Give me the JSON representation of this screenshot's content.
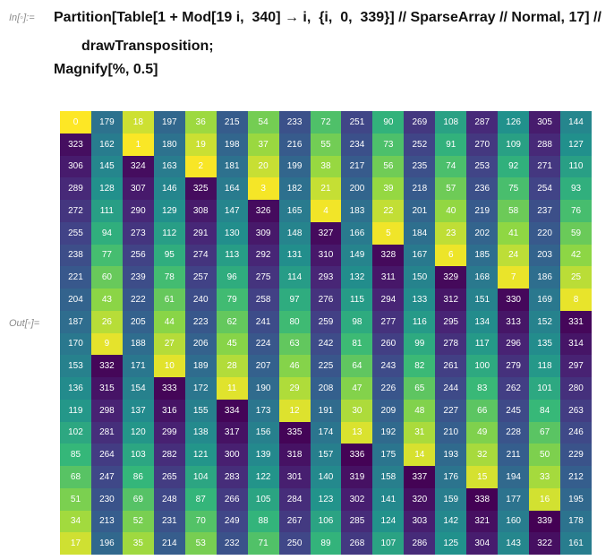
{
  "input_label": "In[◦]:=",
  "output_label": "Out[◦]=",
  "code": {
    "line1": "Partition[Table[1 + Mod[19 i,  340] → i,  {i,  0,  339}] // SparseArray // Normal, 17] //",
    "line2": "drawTransposition;",
    "line3": "Magnify[%, 0.5]"
  },
  "grid": {
    "rows": 20,
    "cols": 17,
    "colormap": "viridis",
    "max_value": 339,
    "values": [
      [
        0,
        179,
        18,
        197,
        36,
        215,
        54,
        233,
        72,
        251,
        90,
        269,
        108,
        287,
        126,
        305,
        144
      ],
      [
        323,
        162,
        1,
        180,
        19,
        198,
        37,
        216,
        55,
        234,
        73,
        252,
        91,
        270,
        109,
        288,
        127
      ],
      [
        306,
        145,
        324,
        163,
        2,
        181,
        20,
        199,
        38,
        217,
        56,
        235,
        74,
        253,
        92,
        271,
        110
      ],
      [
        289,
        128,
        307,
        146,
        325,
        164,
        3,
        182,
        21,
        200,
        39,
        218,
        57,
        236,
        75,
        254,
        93
      ],
      [
        272,
        111,
        290,
        129,
        308,
        147,
        326,
        165,
        4,
        183,
        22,
        201,
        40,
        219,
        58,
        237,
        76
      ],
      [
        255,
        94,
        273,
        112,
        291,
        130,
        309,
        148,
        327,
        166,
        5,
        184,
        23,
        202,
        41,
        220,
        59
      ],
      [
        238,
        77,
        256,
        95,
        274,
        113,
        292,
        131,
        310,
        149,
        328,
        167,
        6,
        185,
        24,
        203,
        42
      ],
      [
        221,
        60,
        239,
        78,
        257,
        96,
        275,
        114,
        293,
        132,
        311,
        150,
        329,
        168,
        7,
        186,
        25
      ],
      [
        204,
        43,
        222,
        61,
        240,
        79,
        258,
        97,
        276,
        115,
        294,
        133,
        312,
        151,
        330,
        169,
        8
      ],
      [
        187,
        26,
        205,
        44,
        223,
        62,
        241,
        80,
        259,
        98,
        277,
        116,
        295,
        134,
        313,
        152,
        331
      ],
      [
        170,
        9,
        188,
        27,
        206,
        45,
        224,
        63,
        242,
        81,
        260,
        99,
        278,
        117,
        296,
        135,
        314
      ],
      [
        153,
        332,
        171,
        10,
        189,
        28,
        207,
        46,
        225,
        64,
        243,
        82,
        261,
        100,
        279,
        118,
        297
      ],
      [
        136,
        315,
        154,
        333,
        172,
        11,
        190,
        29,
        208,
        47,
        226,
        65,
        244,
        83,
        262,
        101,
        280
      ],
      [
        119,
        298,
        137,
        316,
        155,
        334,
        173,
        12,
        191,
        30,
        209,
        48,
        227,
        66,
        245,
        84,
        263
      ],
      [
        102,
        281,
        120,
        299,
        138,
        317,
        156,
        335,
        174,
        13,
        192,
        31,
        210,
        49,
        228,
        67,
        246
      ],
      [
        85,
        264,
        103,
        282,
        121,
        300,
        139,
        318,
        157,
        336,
        175,
        14,
        193,
        32,
        211,
        50,
        229
      ],
      [
        68,
        247,
        86,
        265,
        104,
        283,
        122,
        301,
        140,
        319,
        158,
        337,
        176,
        15,
        194,
        33,
        212
      ],
      [
        51,
        230,
        69,
        248,
        87,
        266,
        105,
        284,
        123,
        302,
        141,
        320,
        159,
        338,
        177,
        16,
        195
      ],
      [
        34,
        213,
        52,
        231,
        70,
        249,
        88,
        267,
        106,
        285,
        124,
        303,
        142,
        321,
        160,
        339,
        178
      ],
      [
        17,
        196,
        35,
        214,
        53,
        232,
        71,
        250,
        89,
        268,
        107,
        286,
        125,
        304,
        143,
        322,
        161
      ]
    ]
  }
}
